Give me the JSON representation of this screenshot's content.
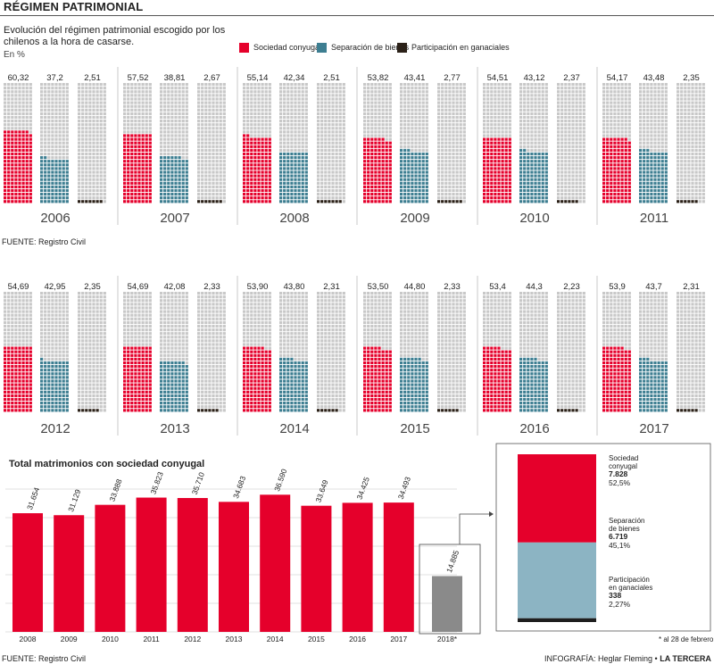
{
  "header": {
    "title": "RÉGIMEN PATRIMONIAL",
    "subtitle": "Evolución del régimen patrimonial escogido por los chilenos a la hora de casarse.",
    "unit": "En %"
  },
  "legend": [
    {
      "label": "Sociedad conyugal",
      "color": "#e5002b"
    },
    {
      "label": "Separación de bienes",
      "color": "#3d7e91"
    },
    {
      "label": "Participación en ganaciales",
      "color": "#2b2118"
    }
  ],
  "colors": {
    "grey_cell": "#c8c8c8",
    "bar_red": "#e5002b",
    "bar_grey": "#8a8a8a",
    "stack_blue": "#8cb4c3",
    "stack_dark": "#1e1e1e"
  },
  "source_top": "FUENTE: Registro Civil",
  "chart_data": [
    {
      "type": "bar",
      "title": "Evolución del régimen patrimonial escogido por los chilenos a la hora de casarse.",
      "ylabel": "En %",
      "categories": [
        "2006",
        "2007",
        "2008",
        "2009",
        "2010",
        "2011",
        "2012",
        "2013",
        "2014",
        "2015",
        "2016",
        "2017"
      ],
      "series": [
        {
          "name": "Sociedad conyugal",
          "labels": [
            "60,32",
            "57,52",
            "55,14",
            "53,82",
            "54,51",
            "54,17",
            "54,69",
            "54,69",
            "53,90",
            "53,50",
            "53,4",
            "53,9"
          ],
          "values": [
            60.32,
            57.52,
            55.14,
            53.82,
            54.51,
            54.17,
            54.69,
            54.69,
            53.9,
            53.5,
            53.4,
            53.9
          ]
        },
        {
          "name": "Separación de bienes",
          "labels": [
            "37,2",
            "38,81",
            "42,34",
            "43,41",
            "43,12",
            "43,48",
            "42,95",
            "42,08",
            "43,80",
            "44,80",
            "44,3",
            "43,7"
          ],
          "values": [
            37.2,
            38.81,
            42.34,
            43.41,
            43.12,
            43.48,
            42.95,
            42.08,
            43.8,
            44.8,
            44.3,
            43.7
          ]
        },
        {
          "name": "Participación en ganaciales",
          "labels": [
            "2,51",
            "2,67",
            "2,51",
            "2,77",
            "2,37",
            "2,35",
            "2,35",
            "2,33",
            "2,31",
            "2,33",
            "2,23",
            "2,31"
          ],
          "values": [
            2.51,
            2.67,
            2.51,
            2.77,
            2.37,
            2.35,
            2.35,
            2.33,
            2.31,
            2.33,
            2.23,
            2.31
          ]
        }
      ]
    },
    {
      "type": "bar",
      "title": "Total matrimonios con sociedad conyugal",
      "categories": [
        "2008",
        "2009",
        "2010",
        "2011",
        "2012",
        "2013",
        "2014",
        "2015",
        "2016",
        "2017",
        "2018*"
      ],
      "labels": [
        "31.654",
        "31.129",
        "33.888",
        "35.823",
        "35.710",
        "34.683",
        "36.590",
        "33.649",
        "34.425",
        "34.493",
        "14.885"
      ],
      "values": [
        31654,
        31129,
        33888,
        35823,
        35710,
        34683,
        36590,
        33649,
        34425,
        34493,
        14885
      ],
      "ylim": [
        0,
        40000
      ]
    },
    {
      "type": "bar",
      "title": "2018*",
      "categories": [
        "Sociedad conyugal",
        "Separación de bienes",
        "Participación en ganaciales"
      ],
      "values": [
        7828,
        6719,
        338
      ],
      "value_labels": [
        "7.828",
        "6.719",
        "338"
      ],
      "percent_labels": [
        "52,5%",
        "45,1%",
        "2,27%"
      ],
      "percents": [
        52.5,
        45.1,
        2.27
      ]
    }
  ],
  "footer": {
    "source": "FUENTE: Registro Civil",
    "credit": "INFOGRAFÍA: Heglar Fleming •",
    "brand": "LA TERCERA",
    "note": "* al 28 de febrero"
  }
}
